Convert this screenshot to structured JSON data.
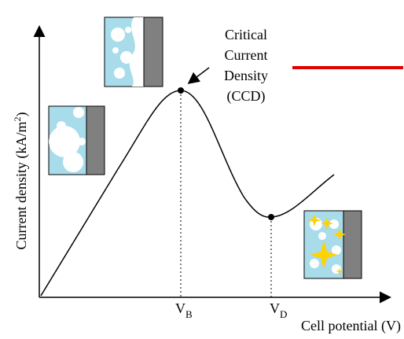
{
  "y_axis_label": {
    "text": "Current density (kA/m",
    "superscript": "2",
    "close": ")"
  },
  "x_axis_label": "Cell potential (V)",
  "annotation": [
    "Critical",
    "Current",
    "Density",
    "(CCD)"
  ],
  "points": [
    {
      "symbol": "V",
      "subscript": "B"
    },
    {
      "symbol": "V",
      "subscript": "D"
    }
  ]
}
